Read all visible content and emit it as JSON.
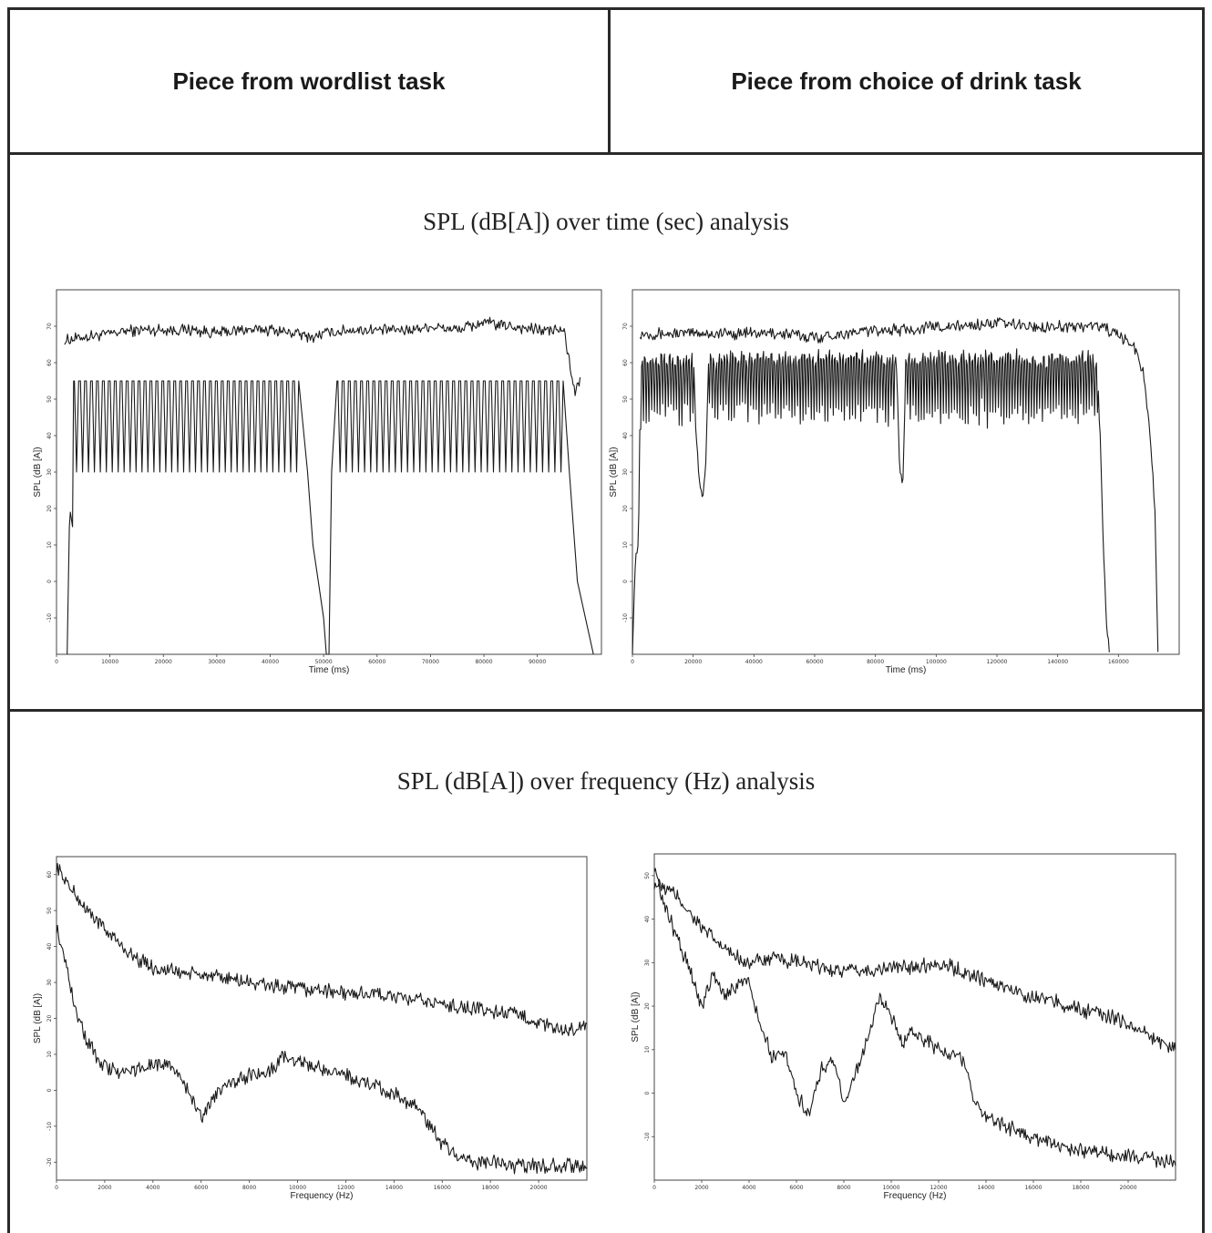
{
  "header": {
    "col_left": "Piece from wordlist task",
    "col_right": "Piece from choice of drink task"
  },
  "sections": {
    "time_title": "SPL (dB[A]) over time (sec) analysis",
    "freq_title": "SPL (dB[A]) over frequency (Hz) analysis"
  },
  "chart_data": [
    {
      "type": "line",
      "panel": "wordlist-time",
      "xlabel": "Time (ms)",
      "ylabel": "SPL (dB [A])",
      "xlim": [
        0,
        102000
      ],
      "ylim": [
        -20,
        80
      ],
      "x_ticks": [
        0,
        10000,
        20000,
        30000,
        40000,
        50000,
        60000,
        70000,
        80000,
        90000
      ],
      "y_ticks": [
        -10,
        0,
        10,
        20,
        30,
        40,
        50,
        60,
        70
      ],
      "series": [
        {
          "values_desc": "upper",
          "x": [
            1500,
            5000,
            10000,
            15000,
            20000,
            25000,
            30000,
            35000,
            40000,
            45000,
            48000,
            50000,
            55000,
            60000,
            65000,
            70000,
            75000,
            80000,
            85000,
            90000,
            95000,
            96000,
            97000,
            98000
          ],
          "y": [
            66,
            67,
            68,
            69,
            69,
            69,
            68,
            69,
            69,
            68,
            67,
            68,
            69,
            69,
            69,
            70,
            69,
            71,
            70,
            69,
            69,
            60,
            52,
            55
          ]
        },
        {
          "values_desc": "lower",
          "periodic": {
            "x_start": 3200,
            "x_end": 45500,
            "x_start2": 52500,
            "x_end2": 95000,
            "high": 55,
            "low": 30,
            "cycles": 38,
            "cycles2": 37
          },
          "x": [
            2000,
            2400,
            2600,
            3000,
            3200,
            45500,
            47000,
            48000,
            49000,
            50000,
            50500,
            51000,
            51500,
            52500,
            95000,
            96000,
            97500,
            99000,
            100500
          ],
          "y": [
            -20,
            15,
            19,
            15,
            55,
            55,
            30,
            10,
            0,
            -10,
            -20,
            -20,
            30,
            55,
            55,
            30,
            0,
            -10,
            -20
          ]
        }
      ]
    },
    {
      "type": "line",
      "panel": "drink-time",
      "xlabel": "Time (ms)",
      "ylabel": "SPL (dB [A])",
      "xlim": [
        0,
        180000
      ],
      "ylim": [
        -20,
        80
      ],
      "x_ticks": [
        0,
        20000,
        40000,
        60000,
        80000,
        100000,
        120000,
        140000,
        160000
      ],
      "y_ticks": [
        -10,
        0,
        10,
        20,
        30,
        40,
        50,
        60,
        70
      ],
      "series": [
        {
          "values_desc": "upper",
          "x": [
            2500,
            10000,
            20000,
            30000,
            40000,
            50000,
            60000,
            70000,
            80000,
            90000,
            100000,
            110000,
            120000,
            130000,
            140000,
            150000,
            155000,
            160000,
            165000,
            168000,
            170000,
            172000,
            173000
          ],
          "y": [
            68,
            68,
            68,
            68,
            68,
            68,
            67,
            68,
            69,
            69,
            70,
            70,
            71,
            70,
            70,
            70,
            70,
            67,
            65,
            58,
            45,
            20,
            -20
          ]
        },
        {
          "values_desc": "lower",
          "x": [
            0,
            1000,
            2000,
            2500,
            3000,
            20000,
            21000,
            22000,
            23000,
            24000,
            25000,
            87000,
            88000,
            89000,
            90000,
            153000,
            154000,
            155000,
            156000,
            157000
          ],
          "y": [
            -20,
            8,
            10,
            48,
            58,
            58,
            40,
            27,
            24,
            28,
            58,
            58,
            30,
            26,
            58,
            58,
            40,
            10,
            -10,
            -20
          ]
        }
      ]
    },
    {
      "type": "line",
      "panel": "wordlist-frequency",
      "xlabel": "Frequency (Hz)",
      "ylabel": "SPL (dB [A])",
      "xlim": [
        0,
        22000
      ],
      "ylim": [
        -25,
        65
      ],
      "x_ticks": [
        0,
        2000,
        4000,
        6000,
        8000,
        10000,
        12000,
        14000,
        16000,
        18000,
        20000
      ],
      "y_ticks": [
        -20,
        -10,
        0,
        10,
        20,
        30,
        40,
        50,
        60
      ],
      "series": [
        {
          "values_desc": "upper",
          "x": [
            0,
            500,
            1000,
            2000,
            3000,
            4000,
            5000,
            6000,
            7000,
            8000,
            9000,
            10000,
            11000,
            12000,
            13000,
            14000,
            15000,
            16000,
            17000,
            18000,
            19000,
            20000,
            21000,
            22000
          ],
          "y": [
            62,
            57,
            52,
            45,
            38,
            34,
            33,
            32,
            31,
            30,
            29,
            28,
            28,
            27,
            27,
            26,
            25,
            24,
            23,
            22,
            21,
            19,
            16,
            18
          ]
        },
        {
          "values_desc": "lower",
          "x": [
            0,
            300,
            700,
            1200,
            1800,
            2500,
            3500,
            4500,
            5000,
            5500,
            6000,
            6500,
            7000,
            8000,
            9000,
            9500,
            10000,
            11000,
            12000,
            13000,
            14000,
            15000,
            15500,
            16000,
            16500,
            17000,
            18000,
            19000,
            20000,
            21000,
            22000
          ],
          "y": [
            45,
            38,
            25,
            15,
            8,
            5,
            6,
            8,
            5,
            0,
            -8,
            -2,
            2,
            4,
            6,
            10,
            8,
            6,
            4,
            2,
            -1,
            -5,
            -10,
            -15,
            -18,
            -20,
            -20,
            -21,
            -21,
            -21,
            -21
          ]
        }
      ]
    },
    {
      "type": "line",
      "panel": "drink-frequency",
      "xlabel": "Frequency (Hz)",
      "ylabel": "SPL (dB [A])",
      "xlim": [
        0,
        22000
      ],
      "ylim": [
        -20,
        55
      ],
      "x_ticks": [
        0,
        2000,
        4000,
        6000,
        8000,
        10000,
        12000,
        14000,
        16000,
        18000,
        20000
      ],
      "y_ticks": [
        -10,
        0,
        10,
        20,
        30,
        40,
        50
      ],
      "series": [
        {
          "values_desc": "upper",
          "x": [
            0,
            500,
            1000,
            2000,
            3000,
            4000,
            5000,
            6000,
            7000,
            8000,
            9000,
            10000,
            11000,
            12000,
            13000,
            14000,
            15000,
            16000,
            17000,
            18000,
            19000,
            20000,
            21000,
            22000
          ],
          "y": [
            48,
            47,
            45,
            38,
            33,
            30,
            31,
            30,
            29,
            28,
            28,
            29,
            29,
            30,
            28,
            26,
            24,
            22,
            21,
            19,
            18,
            16,
            13,
            10
          ]
        },
        {
          "values_desc": "lower",
          "x": [
            0,
            300,
            800,
            1500,
            2000,
            2500,
            3000,
            3500,
            4000,
            4500,
            5000,
            5500,
            6000,
            6500,
            7000,
            7500,
            8000,
            8500,
            9000,
            9500,
            10000,
            10500,
            11000,
            12000,
            13000,
            13500,
            14000,
            15000,
            16000,
            17000,
            18000,
            19000,
            20000,
            21000,
            22000
          ],
          "y": [
            52,
            45,
            38,
            28,
            20,
            28,
            22,
            25,
            26,
            15,
            8,
            10,
            0,
            -5,
            5,
            8,
            -2,
            5,
            12,
            22,
            18,
            12,
            14,
            10,
            8,
            -2,
            -5,
            -8,
            -10,
            -12,
            -13,
            -14,
            -14,
            -15,
            -16
          ]
        }
      ]
    }
  ]
}
